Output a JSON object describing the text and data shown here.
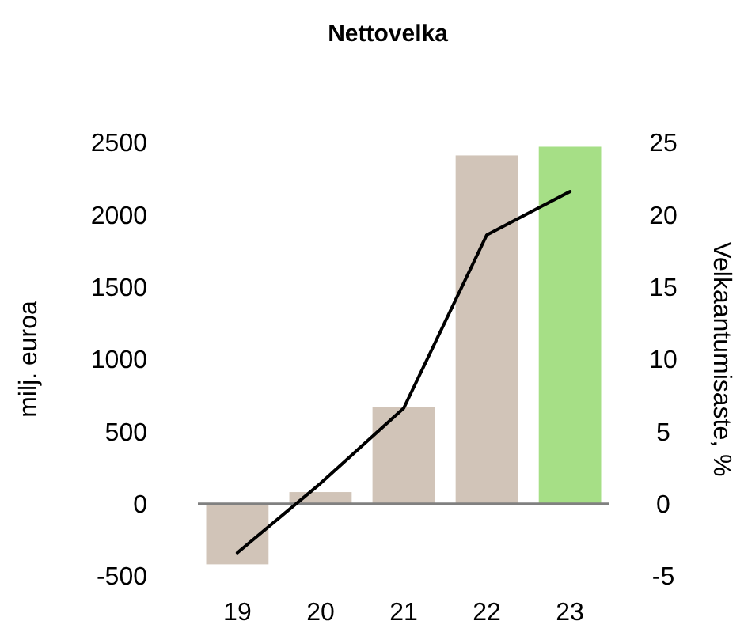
{
  "chart_data": {
    "type": "bar",
    "title": "Nettovelka",
    "ylabel": "milj. euroa",
    "y2label": "Velkaantumisaste, %",
    "categories": [
      "19",
      "20",
      "21",
      "22",
      "23"
    ],
    "series": [
      {
        "colors": [
          "#d1c4b8",
          "#d1c4b8",
          "#d1c4b8",
          "#d1c4b8",
          "#a6df86"
        ],
        "values": [
          -420,
          80,
          670,
          2410,
          2470
        ]
      },
      {
        "type": "line",
        "axis": "y2",
        "color": "#000000",
        "values": [
          -3.4,
          1.4,
          6.6,
          18.6,
          21.6
        ]
      }
    ],
    "ylim": [
      -500,
      2500
    ],
    "yticks": [
      -500,
      0,
      500,
      1000,
      1500,
      2000,
      2500
    ],
    "y2lim": [
      -5,
      25
    ],
    "y2ticks": [
      -5,
      0,
      5,
      10,
      15,
      20,
      25
    ]
  }
}
